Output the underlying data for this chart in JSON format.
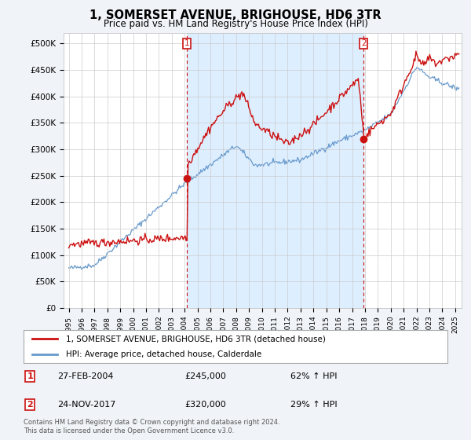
{
  "title": "1, SOMERSET AVENUE, BRIGHOUSE, HD6 3TR",
  "subtitle": "Price paid vs. HM Land Registry's House Price Index (HPI)",
  "property_label": "1, SOMERSET AVENUE, BRIGHOUSE, HD6 3TR (detached house)",
  "hpi_label": "HPI: Average price, detached house, Calderdale",
  "property_color": "#cc1111",
  "hpi_color": "#6699cc",
  "shade_color": "#ddeeff",
  "annotation1": {
    "num": "1",
    "date": "27-FEB-2004",
    "price": "£245,000",
    "change": "62% ↑ HPI",
    "x_year": 2004.15,
    "y_val": 245000
  },
  "annotation2": {
    "num": "2",
    "date": "24-NOV-2017",
    "price": "£320,000",
    "change": "29% ↑ HPI",
    "x_year": 2017.9,
    "y_val": 320000
  },
  "footer": "Contains HM Land Registry data © Crown copyright and database right 2024.\nThis data is licensed under the Open Government Licence v3.0.",
  "ylim": [
    0,
    520000
  ],
  "yticks": [
    0,
    50000,
    100000,
    150000,
    200000,
    250000,
    300000,
    350000,
    400000,
    450000,
    500000
  ],
  "ytick_labels": [
    "£0",
    "£50K",
    "£100K",
    "£150K",
    "£200K",
    "£250K",
    "£300K",
    "£350K",
    "£400K",
    "£450K",
    "£500K"
  ],
  "background_color": "#f0f4f8",
  "plot_background": "#ffffff",
  "grid_color": "#cccccc",
  "xlim_start": 1994.6,
  "xlim_end": 2025.5
}
